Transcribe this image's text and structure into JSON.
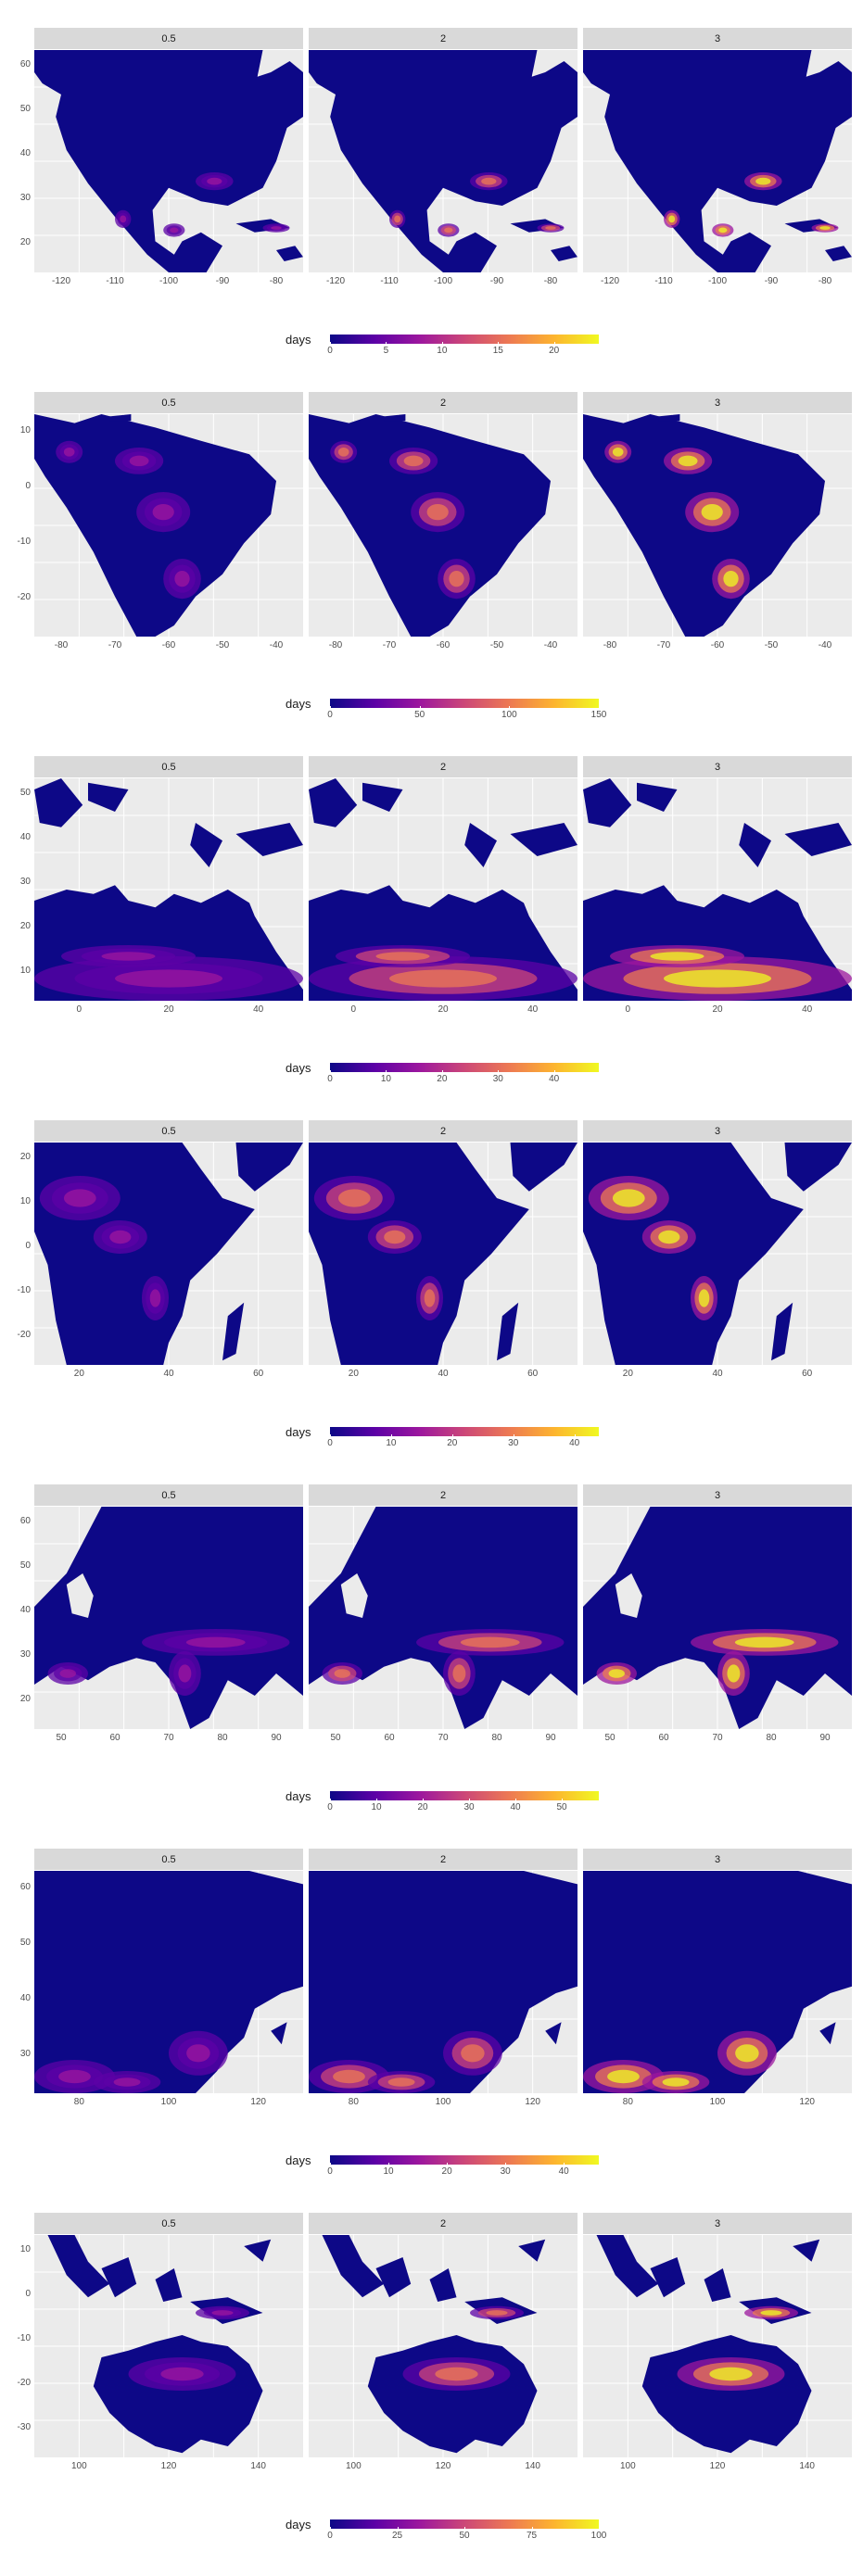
{
  "legend_title": "days",
  "colorscale": [
    "#0d0887",
    "#5c01a6",
    "#9c179e",
    "#cc4778",
    "#ed7953",
    "#fdb42f",
    "#f0f921"
  ],
  "panel_background": "#ebebeb",
  "strip_background": "#d9d9d9",
  "facets": [
    "0.5",
    "2",
    "3"
  ],
  "regions": [
    {
      "name": "north-america",
      "yticks": [
        "60",
        "50",
        "40",
        "30",
        "20"
      ],
      "xticks": [
        "-120",
        "-110",
        "-100",
        "-90",
        "-80"
      ],
      "legend_ticks": [
        "0",
        "5",
        "10",
        "15",
        "20"
      ],
      "legend_max": 24
    },
    {
      "name": "south-america",
      "yticks": [
        "10",
        "0",
        "-10",
        "-20"
      ],
      "xticks": [
        "-80",
        "-70",
        "-60",
        "-50",
        "-40"
      ],
      "legend_ticks": [
        "0",
        "50",
        "100",
        "150"
      ],
      "legend_max": 150
    },
    {
      "name": "europe-north-africa",
      "yticks": [
        "50",
        "40",
        "30",
        "20",
        "10"
      ],
      "xticks": [
        "0",
        "20",
        "40"
      ],
      "legend_ticks": [
        "0",
        "10",
        "20",
        "30",
        "40"
      ],
      "legend_max": 48
    },
    {
      "name": "east-africa",
      "yticks": [
        "20",
        "10",
        "0",
        "-10",
        "-20"
      ],
      "xticks": [
        "20",
        "40",
        "60"
      ],
      "legend_ticks": [
        "0",
        "10",
        "20",
        "30",
        "40"
      ],
      "legend_max": 44
    },
    {
      "name": "south-asia",
      "yticks": [
        "60",
        "50",
        "40",
        "30",
        "20"
      ],
      "xticks": [
        "50",
        "60",
        "70",
        "80",
        "90"
      ],
      "legend_ticks": [
        "0",
        "10",
        "20",
        "30",
        "40",
        "50"
      ],
      "legend_max": 58
    },
    {
      "name": "east-asia",
      "yticks": [
        "60",
        "50",
        "40",
        "30"
      ],
      "xticks": [
        "80",
        "100",
        "120"
      ],
      "legend_ticks": [
        "0",
        "10",
        "20",
        "30",
        "40"
      ],
      "legend_max": 46
    },
    {
      "name": "southeast-asia-australia",
      "yticks": [
        "10",
        "0",
        "-10",
        "-20",
        "-30"
      ],
      "xticks": [
        "100",
        "120",
        "140"
      ],
      "legend_ticks": [
        "0",
        "25",
        "50",
        "75",
        "100"
      ],
      "legend_max": 100
    }
  ]
}
